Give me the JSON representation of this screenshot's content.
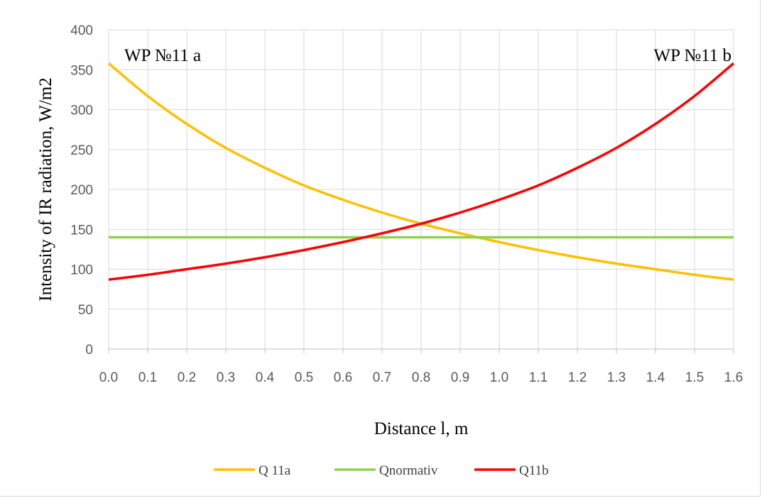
{
  "chart_data": {
    "type": "line",
    "xlabel": "Distance l, m",
    "ylabel": "Intensity of IR radiation, W/m2",
    "xlim": [
      0,
      1.6
    ],
    "ylim": [
      0,
      400
    ],
    "x_ticks": [
      "0.0",
      "0.1",
      "0.2",
      "0.3",
      "0.4",
      "0.5",
      "0.6",
      "0.7",
      "0.8",
      "0.9",
      "1.0",
      "1.1",
      "1.2",
      "1.3",
      "1.4",
      "1.5",
      "1.6"
    ],
    "y_ticks": [
      "0",
      "50",
      "100",
      "150",
      "200",
      "250",
      "300",
      "350",
      "400"
    ],
    "grid": true,
    "legend_position": "bottom",
    "annotations": [
      {
        "text": "WP №11 a",
        "anchor": "top-left"
      },
      {
        "text": "WP №11 b",
        "anchor": "top-right"
      }
    ],
    "x": [
      0.0,
      0.1,
      0.2,
      0.3,
      0.4,
      0.5,
      0.6,
      0.7,
      0.8,
      0.9,
      1.0,
      1.1,
      1.2,
      1.3,
      1.4,
      1.5,
      1.6
    ],
    "series": [
      {
        "name": "Q 11a",
        "color": "#ffc000",
        "values": [
          358,
          317,
          282,
          252,
          227,
          205,
          187,
          171,
          157,
          145,
          134,
          124,
          115,
          107,
          100,
          93,
          87
        ]
      },
      {
        "name": "Qnormativ",
        "color": "#92d050",
        "values": [
          140,
          140,
          140,
          140,
          140,
          140,
          140,
          140,
          140,
          140,
          140,
          140,
          140,
          140,
          140,
          140,
          140
        ]
      },
      {
        "name": "Q11b",
        "color": "#ff0000",
        "values": [
          87,
          93,
          100,
          107,
          115,
          124,
          134,
          145,
          157,
          171,
          187,
          205,
          227,
          252,
          282,
          317,
          358
        ]
      }
    ]
  }
}
